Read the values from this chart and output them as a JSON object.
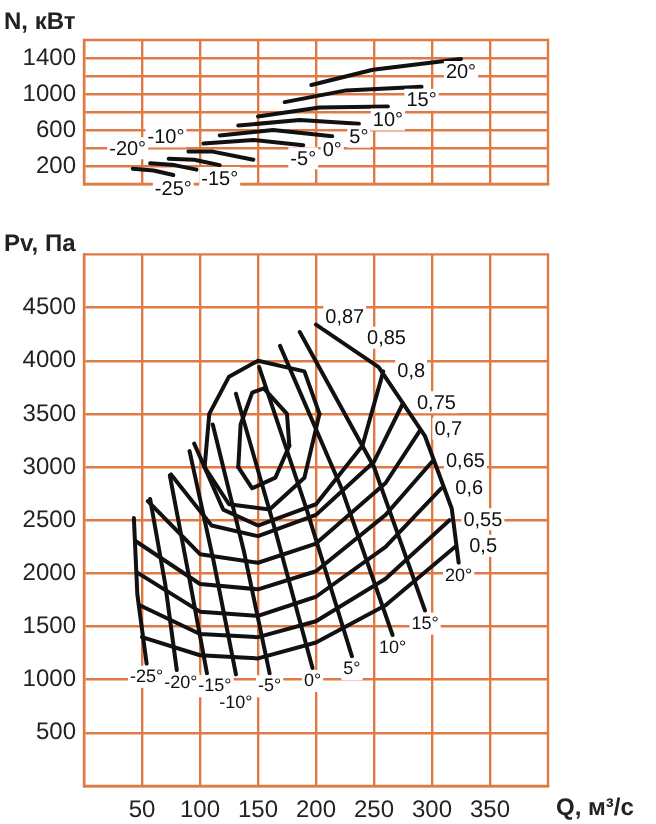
{
  "chart_data": [
    {
      "type": "line",
      "ylabel": "N, кВт",
      "xlim": [
        0,
        400
      ],
      "xticks": [
        50,
        100,
        150,
        200,
        250,
        300,
        350
      ],
      "ylim": [
        0,
        1600
      ],
      "yticks": [
        200,
        {
          "value": 400,
          "label": null
        },
        600,
        {
          "value": 800,
          "label": null
        },
        1000,
        {
          "value": 1200,
          "label": null
        },
        1400
      ],
      "grid": true,
      "tick_labels": "y",
      "marker": "none",
      "line_style": "solid",
      "series": [
        {
          "name": "-25°",
          "color": "#111111",
          "x": [
            42,
            60,
            77
          ],
          "values": [
            170,
            150,
            100
          ]
        },
        {
          "name": "-20°",
          "color": "#111111",
          "x": [
            57,
            78,
            97
          ],
          "values": [
            230,
            210,
            160
          ]
        },
        {
          "name": "-15°",
          "color": "#111111",
          "x": [
            73,
            95,
            117
          ],
          "values": [
            280,
            270,
            210
          ]
        },
        {
          "name": "-10°",
          "color": "#111111",
          "x": [
            90,
            111,
            146
          ],
          "values": [
            360,
            360,
            270
          ]
        },
        {
          "name": "-5°",
          "color": "#111111",
          "x": [
            103,
            146,
            189
          ],
          "values": [
            450,
            490,
            430
          ]
        },
        {
          "name": "0°",
          "color": "#111111",
          "x": [
            117,
            163,
            214
          ],
          "values": [
            540,
            600,
            530
          ]
        },
        {
          "name": "5°",
          "color": "#111111",
          "x": [
            133,
            186,
            237
          ],
          "values": [
            650,
            710,
            670
          ]
        },
        {
          "name": "10°",
          "color": "#111111",
          "x": [
            150,
            203,
            262
          ],
          "values": [
            750,
            850,
            860
          ]
        },
        {
          "name": "15°",
          "color": "#111111",
          "x": [
            173,
            226,
            291
          ],
          "values": [
            910,
            1040,
            1080
          ]
        },
        {
          "name": "20°",
          "color": "#111111",
          "x": [
            196,
            249,
            325
          ],
          "values": [
            1100,
            1270,
            1390
          ]
        }
      ]
    },
    {
      "type": "line",
      "ylabel": "Pv, Па",
      "xlabel": "Q, м³/с",
      "xlim": [
        0,
        400
      ],
      "xticks": [
        50,
        100,
        150,
        200,
        250,
        300,
        350
      ],
      "ylim": [
        0,
        5000
      ],
      "yticks": [
        500,
        1000,
        1500,
        2000,
        2500,
        3000,
        3500,
        4000,
        4500
      ],
      "grid": true,
      "marker": "none",
      "line_style": "solid",
      "annotations": [
        "0,87",
        "0,85"
      ],
      "series": [
        {
          "name": "-25°",
          "color": "#111111",
          "x": [
            43,
            46,
            54
          ],
          "values": [
            2520,
            1800,
            1150
          ]
        },
        {
          "name": "-20°",
          "color": "#111111",
          "x": [
            57,
            70,
            80
          ],
          "values": [
            2700,
            1900,
            1090
          ]
        },
        {
          "name": "-15°",
          "color": "#111111",
          "x": [
            74,
            90,
            106
          ],
          "values": [
            2920,
            2000,
            1060
          ]
        },
        {
          "name": "-10°",
          "color": "#111111",
          "x": [
            91,
            112,
            131
          ],
          "values": [
            3150,
            2100,
            1050
          ]
        },
        {
          "name": "-5°",
          "color": "#111111",
          "x": [
            111,
            138,
            160
          ],
          "values": [
            3400,
            2200,
            1060
          ]
        },
        {
          "name": "0°",
          "color": "#111111",
          "x": [
            131,
            165,
            197
          ],
          "values": [
            3690,
            2400,
            1110
          ]
        },
        {
          "name": "5°",
          "color": "#111111",
          "x": [
            151,
            192,
            231
          ],
          "values": [
            3940,
            2600,
            1220
          ]
        },
        {
          "name": "10°",
          "color": "#111111",
          "x": [
            169,
            222,
            266
          ],
          "values": [
            4140,
            2800,
            1420
          ]
        },
        {
          "name": "15°",
          "color": "#111111",
          "x": [
            186,
            250,
            294
          ],
          "values": [
            4270,
            3000,
            1650
          ]
        },
        {
          "name": "20°",
          "color": "#111111",
          "x": [
            200,
            254,
            294,
            317,
            323
          ],
          "values": [
            4340,
            3940,
            3290,
            2610,
            2100
          ]
        },
        {
          "name": "0,5",
          "color": "#111111",
          "x": [
            50,
            100,
            150,
            200,
            260,
            320
          ],
          "values": [
            1400,
            1230,
            1200,
            1350,
            1700,
            2250
          ]
        },
        {
          "name": "0,55",
          "color": "#111111",
          "x": [
            48,
            100,
            150,
            200,
            260,
            315
          ],
          "values": [
            1700,
            1430,
            1400,
            1550,
            1950,
            2500
          ]
        },
        {
          "name": "0,6",
          "color": "#111111",
          "x": [
            47,
            100,
            150,
            200,
            260,
            308
          ],
          "values": [
            2000,
            1640,
            1600,
            1780,
            2250,
            2800
          ]
        },
        {
          "name": "0,65",
          "color": "#111111",
          "x": [
            45,
            100,
            150,
            200,
            260,
            300
          ],
          "values": [
            2300,
            1900,
            1850,
            2020,
            2550,
            3050
          ]
        },
        {
          "name": "0,7",
          "color": "#111111",
          "x": [
            55,
            100,
            150,
            200,
            260,
            290
          ],
          "values": [
            2680,
            2180,
            2100,
            2280,
            2850,
            3350
          ]
        },
        {
          "name": "0,75",
          "color": "#111111",
          "x": [
            75,
            110,
            150,
            200,
            250,
            275
          ],
          "values": [
            2930,
            2450,
            2350,
            2550,
            3050,
            3600
          ]
        },
        {
          "name": "0,8",
          "color": "#111111",
          "x": [
            95,
            120,
            150,
            200,
            240,
            258
          ],
          "values": [
            3220,
            2600,
            2450,
            2650,
            3200,
            3900
          ]
        },
        {
          "color": "#111111",
          "x": [
            104,
            108,
            125,
            150,
            190,
            203
          ],
          "values": [
            3000,
            3500,
            3850,
            4000,
            3900,
            3500
          ]
        },
        {
          "color": "#111111",
          "x": [
            104,
            125,
            160,
            190,
            203
          ],
          "values": [
            3000,
            2650,
            2600,
            2900,
            3500
          ]
        },
        {
          "color": "#111111",
          "x": [
            133,
            135,
            145,
            155,
            175,
            177
          ],
          "values": [
            3000,
            3400,
            3700,
            3740,
            3500,
            3200
          ]
        },
        {
          "color": "#111111",
          "x": [
            133,
            145,
            165,
            177
          ],
          "values": [
            3000,
            2800,
            2900,
            3200
          ]
        }
      ]
    }
  ]
}
